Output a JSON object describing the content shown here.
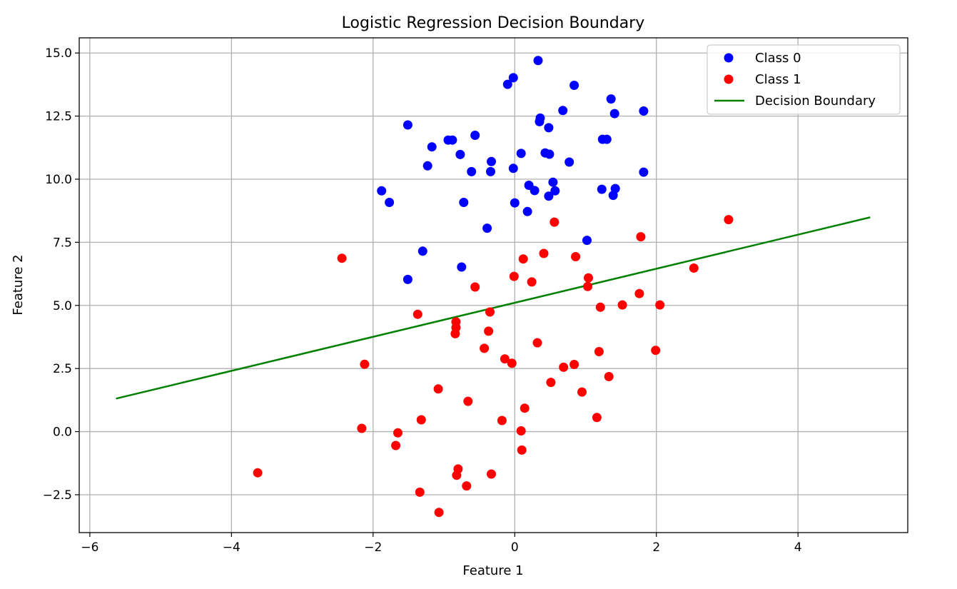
{
  "chart_data": {
    "type": "scatter",
    "title": "Logistic Regression Decision Boundary",
    "xlabel": "Feature 1",
    "ylabel": "Feature 2",
    "xlim": [
      -6.15,
      5.55
    ],
    "ylim": [
      -4.0,
      15.6
    ],
    "xticks": [
      -6,
      -4,
      -2,
      0,
      2,
      4
    ],
    "yticks": [
      -2.5,
      0.0,
      2.5,
      5.0,
      7.5,
      10.0,
      12.5,
      15.0
    ],
    "xtick_labels": [
      "−6",
      "−4",
      "−2",
      "0",
      "2",
      "4"
    ],
    "ytick_labels": [
      "−2.5",
      "0.0",
      "2.5",
      "5.0",
      "7.5",
      "10.0",
      "12.5",
      "15.0"
    ],
    "grid": true,
    "legend_position": "top-right",
    "series": [
      {
        "name": "Class 0",
        "kind": "scatter",
        "color": "#0000ff",
        "points": [
          [
            0.33,
            14.7
          ],
          [
            -0.02,
            14.02
          ],
          [
            -0.1,
            13.76
          ],
          [
            0.84,
            13.72
          ],
          [
            1.36,
            13.18
          ],
          [
            0.68,
            12.72
          ],
          [
            1.82,
            12.7
          ],
          [
            1.41,
            12.6
          ],
          [
            0.36,
            12.42
          ],
          [
            0.35,
            12.28
          ],
          [
            -1.51,
            12.15
          ],
          [
            0.48,
            12.04
          ],
          [
            -0.56,
            11.74
          ],
          [
            1.24,
            11.58
          ],
          [
            1.3,
            11.58
          ],
          [
            -0.94,
            11.55
          ],
          [
            -0.88,
            11.55
          ],
          [
            -1.17,
            11.28
          ],
          [
            0.09,
            11.02
          ],
          [
            0.43,
            11.04
          ],
          [
            0.49,
            10.99
          ],
          [
            -0.77,
            10.98
          ],
          [
            -0.33,
            10.7
          ],
          [
            0.77,
            10.68
          ],
          [
            -1.23,
            10.53
          ],
          [
            -0.02,
            10.43
          ],
          [
            -0.61,
            10.3
          ],
          [
            -0.34,
            10.3
          ],
          [
            1.82,
            10.28
          ],
          [
            0.54,
            9.88
          ],
          [
            0.2,
            9.76
          ],
          [
            1.42,
            9.63
          ],
          [
            1.23,
            9.6
          ],
          [
            -1.88,
            9.54
          ],
          [
            0.28,
            9.55
          ],
          [
            0.57,
            9.54
          ],
          [
            1.39,
            9.36
          ],
          [
            0.48,
            9.33
          ],
          [
            -1.77,
            9.08
          ],
          [
            -0.72,
            9.08
          ],
          [
            0.0,
            9.06
          ],
          [
            0.18,
            8.72
          ],
          [
            -0.39,
            8.06
          ],
          [
            1.02,
            7.58
          ],
          [
            -1.3,
            7.15
          ],
          [
            -0.75,
            6.52
          ],
          [
            -1.51,
            6.03
          ]
        ]
      },
      {
        "name": "Class 1",
        "kind": "scatter",
        "color": "#ff0000",
        "points": [
          [
            3.02,
            8.4
          ],
          [
            0.56,
            8.3
          ],
          [
            1.78,
            7.72
          ],
          [
            0.41,
            7.06
          ],
          [
            0.86,
            6.93
          ],
          [
            0.12,
            6.84
          ],
          [
            -2.44,
            6.87
          ],
          [
            2.53,
            6.48
          ],
          [
            -0.01,
            6.15
          ],
          [
            1.04,
            6.09
          ],
          [
            0.24,
            5.93
          ],
          [
            -0.56,
            5.73
          ],
          [
            1.03,
            5.75
          ],
          [
            1.76,
            5.47
          ],
          [
            1.52,
            5.02
          ],
          [
            2.05,
            5.02
          ],
          [
            1.21,
            4.93
          ],
          [
            -0.35,
            4.74
          ],
          [
            -1.37,
            4.65
          ],
          [
            -0.83,
            4.35
          ],
          [
            -0.83,
            4.12
          ],
          [
            -0.84,
            3.88
          ],
          [
            -0.37,
            3.98
          ],
          [
            0.32,
            3.52
          ],
          [
            -0.43,
            3.3
          ],
          [
            1.99,
            3.22
          ],
          [
            1.19,
            3.17
          ],
          [
            -0.14,
            2.88
          ],
          [
            -0.04,
            2.71
          ],
          [
            -2.12,
            2.67
          ],
          [
            0.69,
            2.55
          ],
          [
            0.84,
            2.66
          ],
          [
            1.33,
            2.18
          ],
          [
            0.51,
            1.95
          ],
          [
            -1.08,
            1.69
          ],
          [
            0.95,
            1.57
          ],
          [
            -0.66,
            1.2
          ],
          [
            0.14,
            0.93
          ],
          [
            1.16,
            0.56
          ],
          [
            -0.18,
            0.44
          ],
          [
            -1.32,
            0.47
          ],
          [
            -2.16,
            0.13
          ],
          [
            0.09,
            0.03
          ],
          [
            -1.65,
            -0.05
          ],
          [
            -1.68,
            -0.55
          ],
          [
            0.1,
            -0.73
          ],
          [
            -0.8,
            -1.48
          ],
          [
            -3.63,
            -1.63
          ],
          [
            -0.33,
            -1.68
          ],
          [
            -0.82,
            -1.73
          ],
          [
            -0.68,
            -2.15
          ],
          [
            -1.34,
            -2.4
          ],
          [
            -1.07,
            -3.2
          ]
        ]
      },
      {
        "name": "Decision Boundary",
        "kind": "line",
        "color": "#008000",
        "points": [
          [
            -5.63,
            1.31
          ],
          [
            5.02,
            8.49
          ]
        ]
      }
    ]
  }
}
